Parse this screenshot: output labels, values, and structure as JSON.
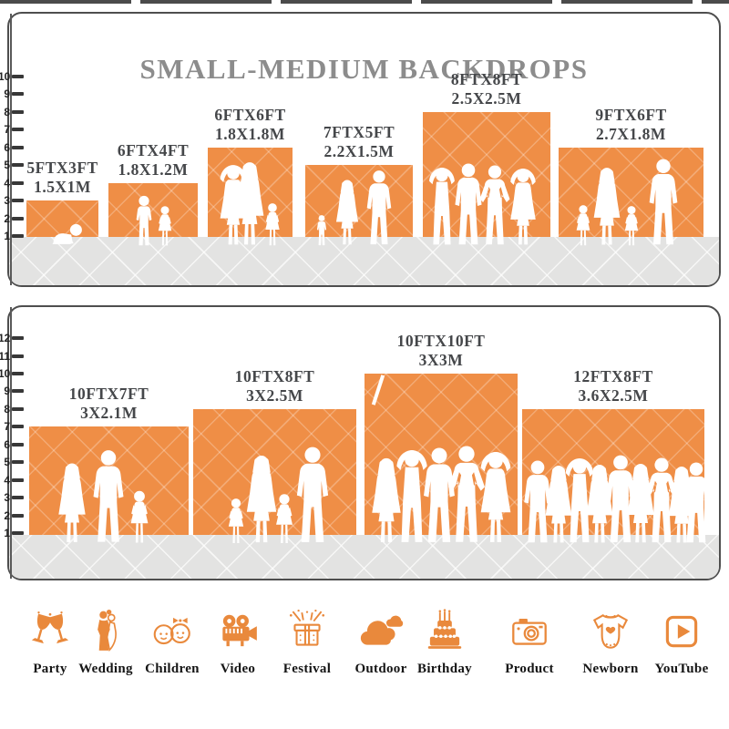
{
  "title": "SMALL-MEDIUM BACKDROPS",
  "panels": [
    {
      "id": "small-medium-top",
      "ruler_numbers": [
        1,
        2,
        3,
        4,
        5,
        6,
        7,
        8,
        9,
        10
      ],
      "backdrops": [
        {
          "size_ft": "5FTX3FT",
          "size_m": "1.5X1M",
          "height_ft": 3
        },
        {
          "size_ft": "6FTX4FT",
          "size_m": "1.8X1.2M",
          "height_ft": 4
        },
        {
          "size_ft": "6FTX6FT",
          "size_m": "1.8X1.8M",
          "height_ft": 6
        },
        {
          "size_ft": "7FTX5FT",
          "size_m": "2.2X1.5M",
          "height_ft": 5
        },
        {
          "size_ft": "8FTX8FT",
          "size_m": "2.5X2.5M",
          "height_ft": 8
        },
        {
          "size_ft": "9FTX6FT",
          "size_m": "2.7X1.8M",
          "height_ft": 6
        }
      ]
    },
    {
      "id": "medium-bottom",
      "ruler_numbers": [
        1,
        2,
        3,
        4,
        5,
        6,
        7,
        8,
        9,
        10,
        11,
        12
      ],
      "backdrops": [
        {
          "size_ft": "10FTX7FT",
          "size_m": "3X2.1M",
          "height_ft": 7
        },
        {
          "size_ft": "10FTX8FT",
          "size_m": "3X2.5M",
          "height_ft": 8
        },
        {
          "size_ft": "10FTX10FT",
          "size_m": "3X3M",
          "height_ft": 10
        },
        {
          "size_ft": "12FTX8FT",
          "size_m": "3.6X2.5M",
          "height_ft": 8
        }
      ]
    }
  ],
  "categories": [
    {
      "label": "Party",
      "icon": "party-icon"
    },
    {
      "label": "Wedding",
      "icon": "wedding-icon"
    },
    {
      "label": "Children",
      "icon": "children-icon"
    },
    {
      "label": "Video",
      "icon": "video-icon"
    },
    {
      "label": "Festival",
      "icon": "festival-icon"
    },
    {
      "label": "Outdoor",
      "icon": "outdoor-icon"
    },
    {
      "label": "Birthday",
      "icon": "birthday-icon"
    },
    {
      "label": "Product",
      "icon": "product-icon"
    },
    {
      "label": "Newborn",
      "icon": "newborn-icon"
    },
    {
      "label": "YouTube",
      "icon": "youtube-icon"
    }
  ],
  "colors": {
    "backdrop_orange": "#EF8E46",
    "icon_orange": "#E9893C",
    "title_gray": "#8C8C8C",
    "label_gray": "#45474A",
    "ruler_dark": "#3C3C3C",
    "floor_gray": "#E3E3E2"
  }
}
